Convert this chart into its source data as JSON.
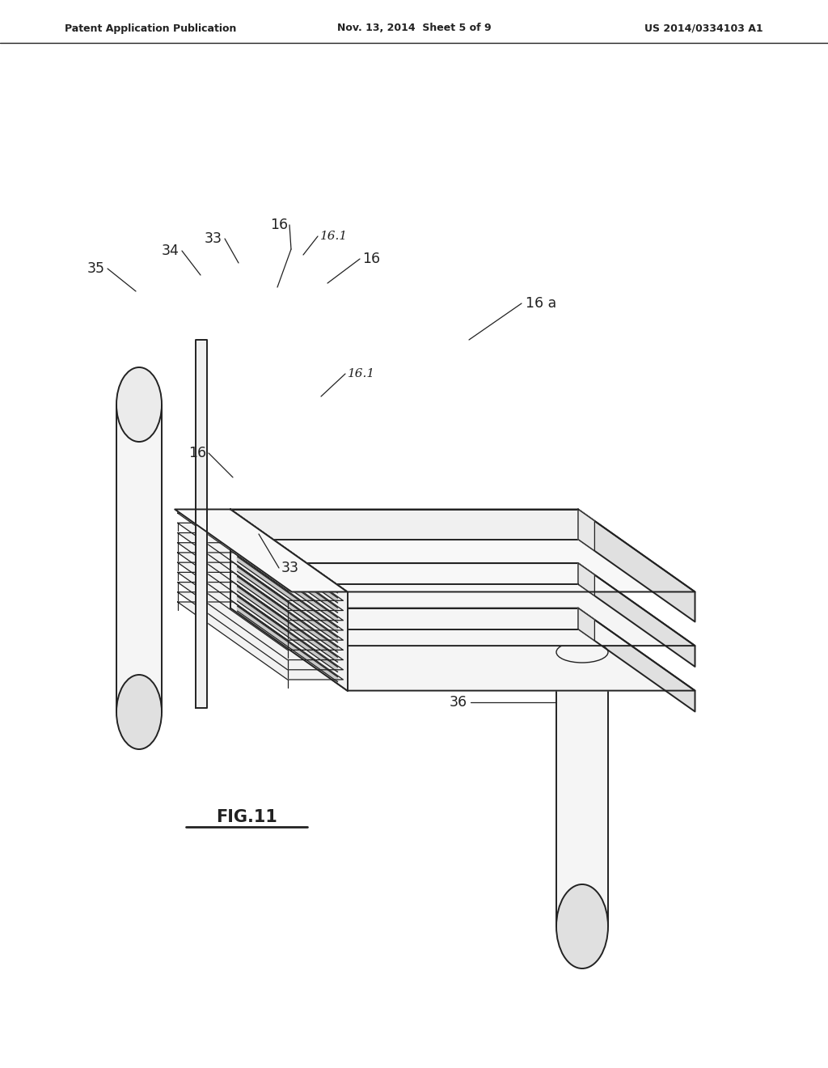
{
  "bg_color": "#ffffff",
  "line_color": "#222222",
  "header_left": "Patent Application Publication",
  "header_center": "Nov. 13, 2014  Sheet 5 of 9",
  "header_right": "US 2014/0334103 A1",
  "fig_label": "FIG.11",
  "lw": 1.4,
  "lw_thin": 0.9,
  "lw_thick": 1.8,
  "figsize": [
    10.24,
    13.2
  ],
  "dpi": 100
}
